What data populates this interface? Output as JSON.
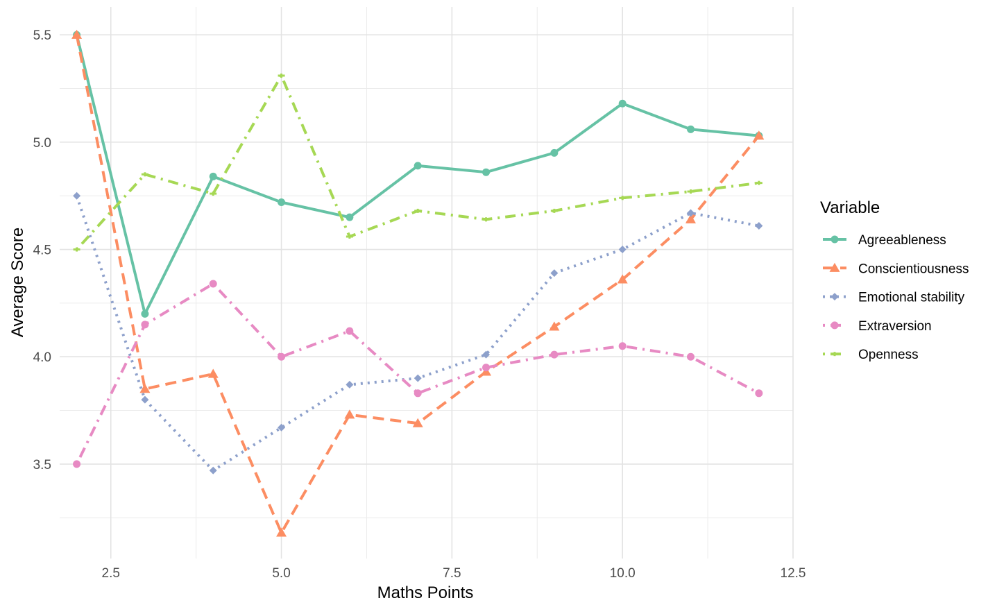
{
  "chart_data": {
    "type": "line",
    "xlabel": "Maths Points",
    "ylabel": "Average Score",
    "legend_title": "Variable",
    "legend_position": "right",
    "grid": true,
    "xlim": [
      1.75,
      12.5
    ],
    "ylim": [
      3.06,
      5.63
    ],
    "x_ticks": [
      2.5,
      5.0,
      7.5,
      10.0,
      12.5
    ],
    "x_tick_labels": [
      "2.5",
      "5.0",
      "7.5",
      "10.0",
      "12.5"
    ],
    "y_ticks": [
      3.5,
      4.0,
      4.5,
      5.0,
      5.5
    ],
    "y_tick_labels": [
      "3.5",
      "4.0",
      "4.5",
      "5.0",
      "5.5"
    ],
    "x": [
      2,
      3,
      4,
      5,
      6,
      7,
      8,
      9,
      10,
      11,
      12
    ],
    "series": [
      {
        "name": "Agreeableness",
        "color": "#66c2a5",
        "marker": "circle",
        "dash": "solid",
        "values": [
          5.5,
          4.2,
          4.84,
          4.72,
          4.65,
          4.89,
          4.86,
          4.95,
          5.18,
          5.06,
          5.03
        ]
      },
      {
        "name": "Conscientiousness",
        "color": "#fc8d62",
        "marker": "triangle",
        "dash": "dashed",
        "values": [
          5.5,
          3.85,
          3.92,
          3.18,
          3.73,
          3.69,
          3.93,
          4.14,
          4.36,
          4.64,
          5.03
        ]
      },
      {
        "name": "Emotional stability",
        "color": "#8da0cb",
        "marker": "diamond",
        "dash": "dotted",
        "values": [
          4.75,
          3.8,
          3.47,
          3.67,
          3.87,
          3.9,
          4.01,
          4.39,
          4.5,
          4.67,
          4.61
        ]
      },
      {
        "name": "Extraversion",
        "color": "#e78ac3",
        "marker": "circle",
        "dash": "dotdash",
        "values": [
          3.5,
          4.15,
          4.34,
          4.0,
          4.12,
          3.83,
          3.95,
          4.01,
          4.05,
          4.0,
          3.83
        ]
      },
      {
        "name": "Openness",
        "color": "#a6d854",
        "marker": "cross",
        "dash": "dotdash",
        "values": [
          4.5,
          4.85,
          4.76,
          5.31,
          4.56,
          4.68,
          4.64,
          4.68,
          4.74,
          4.77,
          4.81
        ]
      }
    ]
  }
}
